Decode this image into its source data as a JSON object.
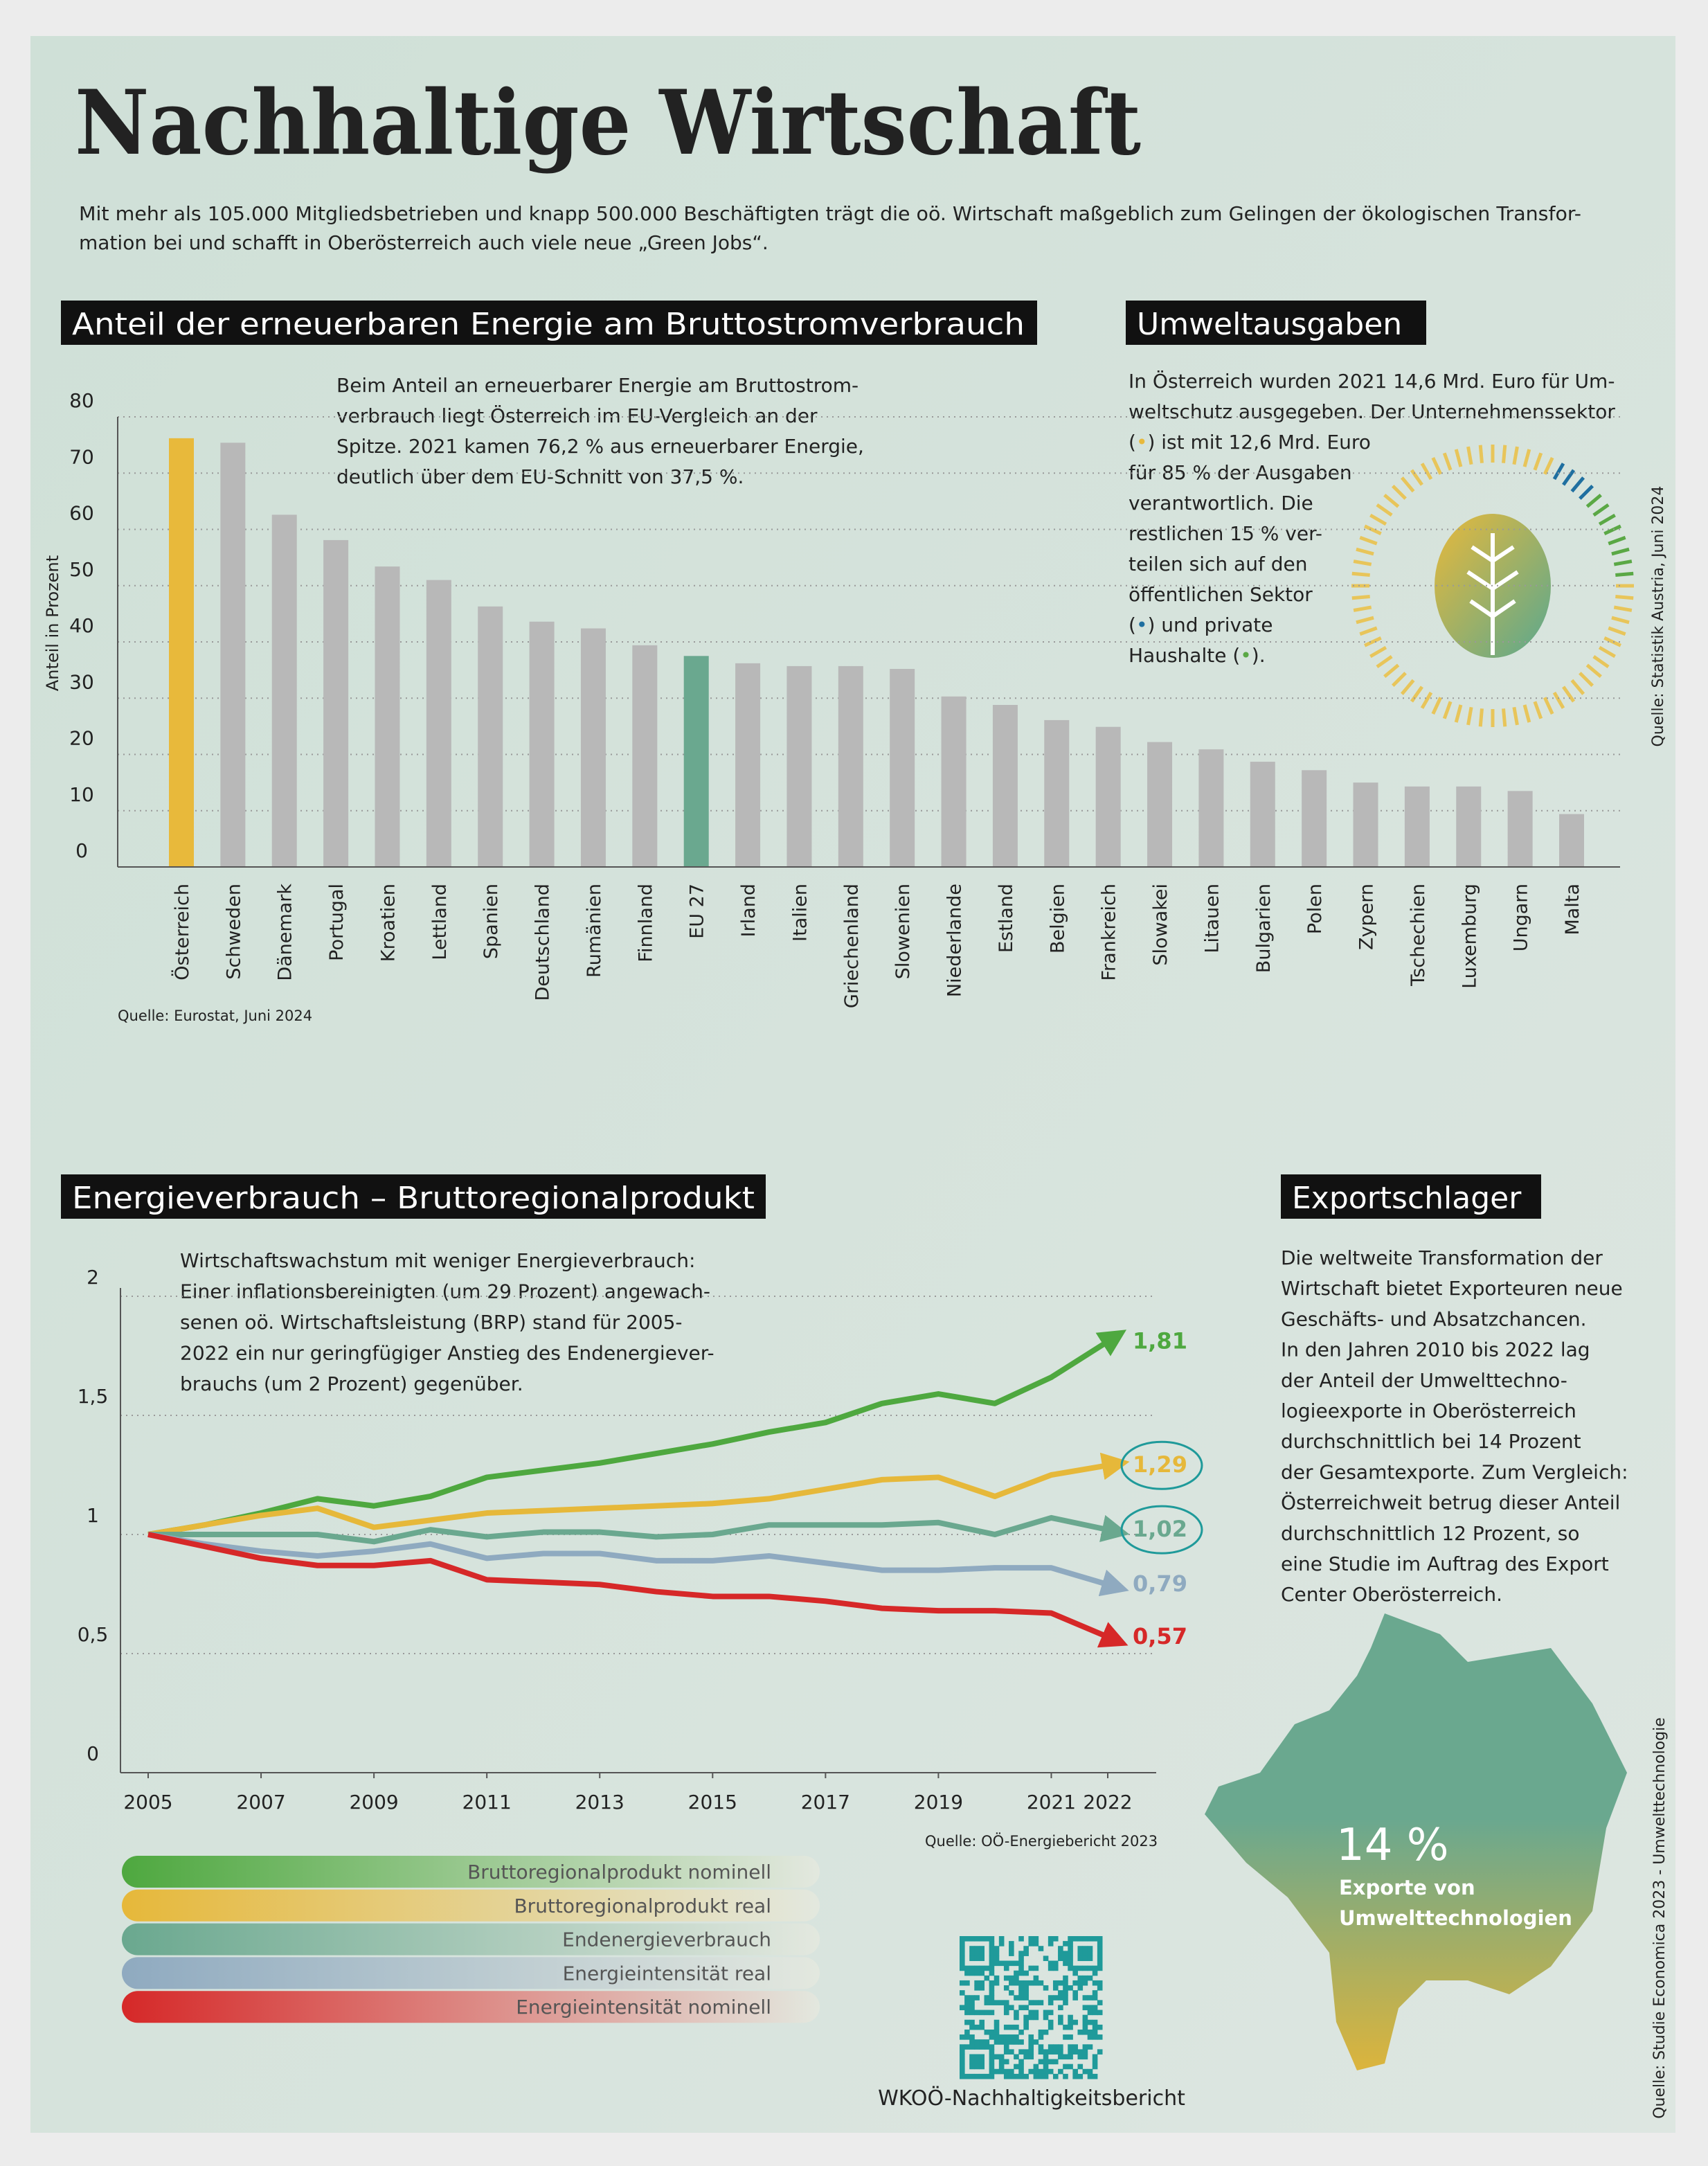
{
  "header": {
    "title": "Nachhaltige Wirtschaft",
    "intro": [
      "Mit mehr als 105.000 Mitgliedsbetrieben und knapp 500.000 Beschäftigten trägt die oö. Wirtschaft maßgeblich zum Gelingen der ökologischen Transfor-",
      "mation bei und schafft in Oberösterreich auch viele neue „Green Jobs“."
    ]
  },
  "chart_data": [
    {
      "type": "bar",
      "title": "Anteil der erneuerbaren Energie am Bruttostromverbrauch",
      "text": [
        "Beim Anteil an erneuerbarer Energie am Bruttostrom-",
        "verbrauch liegt Österreich im EU-Vergleich an der",
        "Spitze. 2021 kamen 76,2 % aus erneuerbarer Energie,",
        "deutlich über dem EU-Schnitt von 37,5 %."
      ],
      "y_label": "Anteil in Prozent",
      "categories": [
        "Österreich",
        "Schweden",
        "Dänemark",
        "Portugal",
        "Kroatien",
        "Lettland",
        "Spanien",
        "Deutschland",
        "Rumänien",
        "Finnland",
        "EU 27",
        "Irland",
        "Italien",
        "Griechenland",
        "Slowenien",
        "Niederlande",
        "Estland",
        "Belgien",
        "Frankreich",
        "Slowakei",
        "Litauen",
        "Bulgarien",
        "Polen",
        "Zypern",
        "Tschechien",
        "Luxemburg",
        "Ungarn",
        "Malta"
      ],
      "values": [
        76.2,
        75.4,
        62.6,
        58.1,
        53.4,
        51.0,
        46.3,
        43.6,
        42.4,
        39.4,
        37.5,
        36.2,
        35.7,
        35.7,
        35.2,
        30.3,
        28.8,
        26.1,
        24.9,
        22.2,
        20.9,
        18.7,
        17.2,
        15.0,
        14.3,
        14.3,
        13.5,
        9.4
      ],
      "colors": [
        "#e8b93b",
        "#b8b8b8",
        "#b8b8b8",
        "#b8b8b8",
        "#b8b8b8",
        "#b8b8b8",
        "#b8b8b8",
        "#b8b8b8",
        "#b8b8b8",
        "#b8b8b8",
        "#6aa88f",
        "#b8b8b8",
        "#b8b8b8",
        "#b8b8b8",
        "#b8b8b8",
        "#b8b8b8",
        "#b8b8b8",
        "#b8b8b8",
        "#b8b8b8",
        "#b8b8b8",
        "#b8b8b8",
        "#b8b8b8",
        "#b8b8b8",
        "#b8b8b8",
        "#b8b8b8",
        "#b8b8b8",
        "#b8b8b8",
        "#b8b8b8"
      ],
      "ylim": [
        0,
        80
      ],
      "yticks": [
        0,
        10,
        20,
        30,
        40,
        50,
        60,
        70,
        80
      ],
      "grid": true,
      "source": "Quelle: Eurostat, Juni 2024"
    },
    {
      "type": "line",
      "title": "Energieverbrauch – Bruttoregionalprodukt",
      "text": [
        "Wirtschaftswachstum mit weniger Energieverbrauch:",
        "Einer inflationsbereinigten (um 29 Prozent) angewach-",
        "senen oö. Wirtschaftsleistung (BRP) stand für 2005-",
        "2022 ein nur geringfügiger Anstieg des Endenergiever-",
        "brauchs (um 2 Prozent) gegenüber."
      ],
      "x": [
        2005,
        2006,
        2007,
        2008,
        2009,
        2010,
        2011,
        2012,
        2013,
        2014,
        2015,
        2016,
        2017,
        2018,
        2019,
        2020,
        2021,
        2022
      ],
      "xlim": [
        2005,
        2022
      ],
      "xticks": [
        2005,
        2007,
        2009,
        2011,
        2013,
        2015,
        2017,
        2019,
        2021,
        2022
      ],
      "ylim": [
        0,
        2
      ],
      "yticks": [
        0,
        {
          "value": 0.5,
          "label": "0,5"
        },
        1,
        {
          "value": 1.5,
          "label": "1,5"
        },
        2
      ],
      "grid": true,
      "series": [
        {
          "name": "Bruttoregionalprodukt nominell",
          "color": "#4ea83f",
          "values": [
            1,
            1.04,
            1.09,
            1.15,
            1.12,
            1.16,
            1.24,
            1.27,
            1.3,
            1.34,
            1.38,
            1.43,
            1.47,
            1.55,
            1.59,
            1.55,
            1.66,
            1.81
          ],
          "value_labels": [
            null,
            null,
            null,
            null,
            null,
            null,
            null,
            null,
            null,
            null,
            null,
            null,
            null,
            null,
            null,
            null,
            null,
            "1,81"
          ]
        },
        {
          "name": "Bruttoregionalprodukt real",
          "color": "#e6b83a",
          "values": [
            1,
            1.04,
            1.08,
            1.11,
            1.03,
            1.06,
            1.09,
            1.1,
            1.11,
            1.12,
            1.13,
            1.15,
            1.19,
            1.23,
            1.24,
            1.16,
            1.25,
            1.29
          ],
          "value_labels": [
            null,
            null,
            null,
            null,
            null,
            null,
            null,
            null,
            null,
            null,
            null,
            null,
            null,
            null,
            null,
            null,
            null,
            "1,29"
          ],
          "circled": true
        },
        {
          "name": "Endenergieverbrauch",
          "color": "#6aa88f",
          "values": [
            1,
            1.0,
            1.0,
            1.0,
            0.97,
            1.02,
            0.99,
            1.01,
            1.01,
            0.99,
            1.0,
            1.04,
            1.04,
            1.04,
            1.05,
            1.0,
            1.07,
            1.02
          ],
          "value_labels": [
            null,
            null,
            null,
            null,
            null,
            null,
            null,
            null,
            null,
            null,
            null,
            null,
            null,
            null,
            null,
            null,
            null,
            "1,02"
          ],
          "circled": true
        },
        {
          "name": "Energieintensität real",
          "color": "#8faac0",
          "values": [
            1,
            0.96,
            0.93,
            0.91,
            0.93,
            0.96,
            0.9,
            0.92,
            0.92,
            0.89,
            0.89,
            0.91,
            0.88,
            0.85,
            0.85,
            0.86,
            0.86,
            0.79
          ],
          "value_labels": [
            null,
            null,
            null,
            null,
            null,
            null,
            null,
            null,
            null,
            null,
            null,
            null,
            null,
            null,
            null,
            null,
            null,
            "0,79"
          ]
        },
        {
          "name": "Energieintensität nominell",
          "color": "#d62828",
          "values": [
            1,
            0.95,
            0.9,
            0.87,
            0.87,
            0.89,
            0.81,
            0.8,
            0.79,
            0.76,
            0.74,
            0.74,
            0.72,
            0.69,
            0.68,
            0.68,
            0.67,
            0.57
          ],
          "value_labels": [
            null,
            null,
            null,
            null,
            null,
            null,
            null,
            null,
            null,
            null,
            null,
            null,
            null,
            null,
            null,
            null,
            null,
            "0,57"
          ]
        }
      ],
      "source": "Quelle: OÖ-Energiebericht 2023"
    }
  ],
  "umweltausgaben": {
    "title": "Umweltausgaben",
    "text": [
      "In Österreich wurden 2021 14,6 Mrd. Euro für Um-",
      "weltschutz ausgegeben. Der Unternehmenssektor",
      "(•) ist mit 12,6 Mrd. Euro",
      "für 85 % der Ausgaben",
      "verantwortlich. Die",
      "restlichen 15 % ver-",
      "teilen sich auf den",
      "öffentlichen Sektor",
      "(•)  und private",
      "Haushalte (•)."
    ],
    "dot_colors": [
      "#e8b93b",
      "#1f6fa0",
      "#5aa845"
    ],
    "source": "Quelle: Statistik Austria, Juni 2024"
  },
  "exportschlager": {
    "title": "Exportschlager",
    "text": [
      "Die weltweite Transformation der",
      "Wirtschaft bietet Exporteuren neue",
      "Geschäfts- und Absatzchancen.",
      "In den Jahren 2010 bis 2022 lag",
      "der Anteil der Umwelttechno-",
      "logieexporte in Oberösterreich",
      "durchschnittlich bei 14 Prozent",
      "der Gesamtexporte. Zum Vergleich:",
      "Österreichweit betrug dieser Anteil",
      "durchschnittlich 12 Prozent, so",
      "eine Studie im Auftrag des Export",
      "Center Oberösterreich."
    ],
    "map_value": "14 %",
    "map_caption": [
      "Exporte von",
      "Umwelttechnologien"
    ],
    "source": "Quelle: Studie Economica 2023 - Umwelttechnologie"
  },
  "qr_caption": "WKOÖ-Nachhaltigkeitsbericht"
}
